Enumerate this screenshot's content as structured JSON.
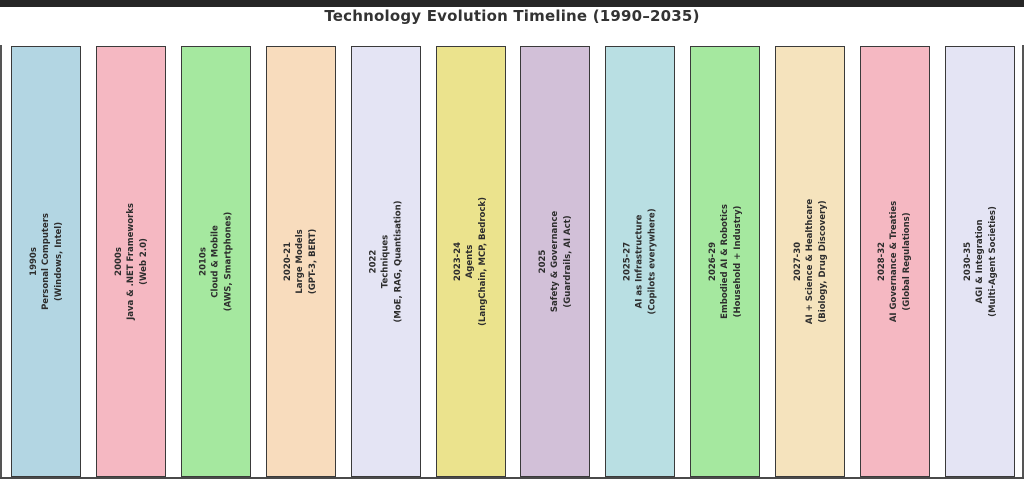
{
  "title": "Technology Evolution Timeline (1990–2035)",
  "colors": {
    "background": "#ffffff",
    "top_border": "#262626",
    "title_text": "#333333",
    "bar_border": "#3a3a3a",
    "bar_text": "#2e2e2e",
    "axis_line": "#4a4a4a"
  },
  "chart_data": {
    "type": "bar",
    "title": "Technology Evolution Timeline (1990–2035)",
    "xlabel": "",
    "ylabel": "",
    "ylim": [
      0,
      1
    ],
    "grid": false,
    "legend": false,
    "note": "12 equal-height vertical era columns with rotated labels",
    "categories": [
      "1990s",
      "2000s",
      "2010s",
      "2020-21",
      "2022",
      "2023-24",
      "2025",
      "2025-27",
      "2026-29",
      "2027-30",
      "2028-32",
      "2030-35"
    ],
    "values": [
      1,
      1,
      1,
      1,
      1,
      1,
      1,
      1,
      1,
      1,
      1,
      1
    ],
    "bars": [
      {
        "year": "1990s",
        "label": "Personal Computers",
        "detail": "(Windows, Intel)",
        "color": "#b3d6e3"
      },
      {
        "year": "2000s",
        "label": "Java & .NET Frameworks",
        "detail": "(Web 2.0)",
        "color": "#f5b8c2"
      },
      {
        "year": "2010s",
        "label": "Cloud & Mobile",
        "detail": "(AWS, Smartphones)",
        "color": "#a5e89f"
      },
      {
        "year": "2020-21",
        "label": "Large Models",
        "detail": "(GPT-3, BERT)",
        "color": "#f8dcbd"
      },
      {
        "year": "2022",
        "label": "Techniques",
        "detail": "(MoE, RAG, Quantisation)",
        "color": "#e4e4f4"
      },
      {
        "year": "2023-24",
        "label": "Agents",
        "detail": "(LangChain, MCP, Bedrock)",
        "color": "#ebe38d"
      },
      {
        "year": "2025",
        "label": "Safety & Governance",
        "detail": "(Guardrails, AI Act)",
        "color": "#d2c0d8"
      },
      {
        "year": "2025-27",
        "label": "AI as Infrastructure",
        "detail": "(Copilots everywhere)",
        "color": "#b9dfe3"
      },
      {
        "year": "2026-29",
        "label": "Embodied AI & Robotics",
        "detail": "(Household + Industry)",
        "color": "#a5e89f"
      },
      {
        "year": "2027-30",
        "label": "AI + Science & Healthcare",
        "detail": "(Biology, Drug Discovery)",
        "color": "#f5e3bd"
      },
      {
        "year": "2028-32",
        "label": "AI Governance & Treaties",
        "detail": "(Global Regulations)",
        "color": "#f5b8c2"
      },
      {
        "year": "2030-35",
        "label": "AGI & Integration",
        "detail": "(Multi-Agent Societies)",
        "color": "#e4e4f4"
      }
    ]
  }
}
